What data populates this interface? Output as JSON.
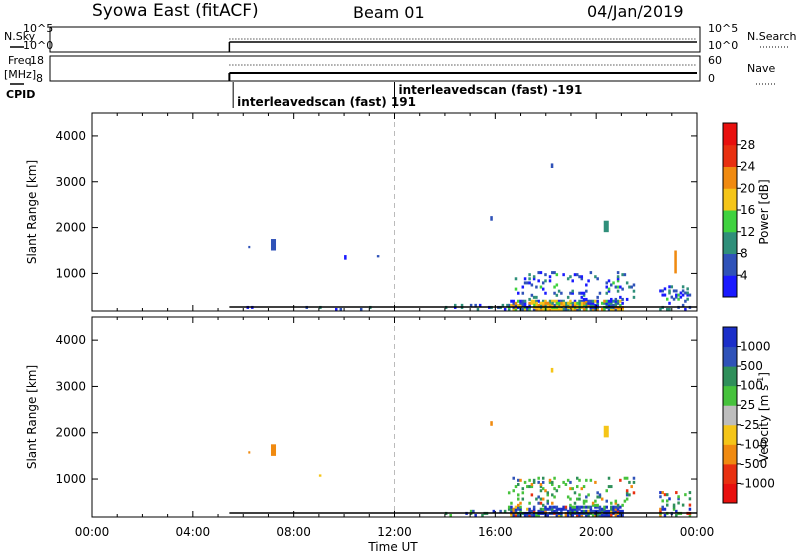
{
  "header": {
    "title": "Syowa East (fitACF)",
    "beam": "Beam 01",
    "date": "04/Jan/2019"
  },
  "status_panels": {
    "nsky": {
      "label": "N.Sky",
      "ticks": [
        "10^5",
        "10^0"
      ],
      "right_ticks": [
        "10^5",
        "10^0"
      ],
      "right_label": "N.Search",
      "right_legend_style": "dotted"
    },
    "freq": {
      "label_line1": "Freq.",
      "label_line2": "[MHz]",
      "ticks": [
        "18",
        "8"
      ],
      "right_ticks": [
        "60",
        "0"
      ],
      "right_label": "Nave",
      "right_legend_style": "dotted"
    },
    "cpid": {
      "label": "CPID",
      "entries": [
        {
          "time_h": 5.6,
          "text": "interleavedscan (fast) 191"
        },
        {
          "time_h": 12.0,
          "text": "interleavedscan (fast) -191"
        }
      ]
    },
    "data_start_h": 5.45,
    "data_end_h": 24.0
  },
  "chart_data": [
    {
      "type": "heatmap",
      "name": "power",
      "ylabel": "Slant Range [km]",
      "xlabel": "",
      "xlim": [
        0,
        24
      ],
      "ylim": [
        180,
        4500
      ],
      "yticks": [
        1000,
        2000,
        3000,
        4000
      ],
      "colorbar": {
        "label": "Power [dB]",
        "ticks": [
          "4",
          "8",
          "12",
          "16",
          "20",
          "24",
          "28"
        ],
        "colors": [
          "#1a1aff",
          "#2f52b8",
          "#2f8f7a",
          "#3fd23f",
          "#f5c518",
          "#f08a10",
          "#e83010",
          "#e8100e"
        ]
      },
      "clusters": [
        {
          "t0": 16.5,
          "t1": 21.0,
          "r0": 180,
          "r1": 400,
          "density": 0.75,
          "color_mix": [
            0.1,
            0.2,
            0.3,
            0.15,
            0.15,
            0.1
          ]
        },
        {
          "t0": 17.5,
          "t1": 19.5,
          "r0": 180,
          "r1": 350,
          "density": 0.8,
          "color_mix": [
            0,
            0.05,
            0.1,
            0.2,
            0.35,
            0.3
          ]
        },
        {
          "t0": 16.5,
          "t1": 21.5,
          "r0": 400,
          "r1": 1000,
          "density": 0.12,
          "color_mix": [
            0.4,
            0.3,
            0.2,
            0.1,
            0,
            0
          ]
        },
        {
          "t0": 22.5,
          "t1": 23.7,
          "r0": 180,
          "r1": 700,
          "density": 0.2,
          "color_mix": [
            0.3,
            0.3,
            0.3,
            0.1,
            0,
            0
          ]
        },
        {
          "t0": 5.5,
          "t1": 11.0,
          "r0": 180,
          "r1": 260,
          "density": 0.05,
          "color_mix": [
            0.4,
            0.3,
            0.3,
            0,
            0,
            0
          ]
        },
        {
          "t0": 14.0,
          "t1": 16.5,
          "r0": 180,
          "r1": 300,
          "density": 0.15,
          "color_mix": [
            0.4,
            0.3,
            0.3,
            0,
            0,
            0
          ]
        }
      ],
      "streaks": [
        {
          "t0": 7.1,
          "t1": 7.3,
          "r0": 1500,
          "r1": 1750,
          "color": "#2f52b8"
        },
        {
          "t0": 6.2,
          "t1": 6.25,
          "r0": 1550,
          "r1": 1600,
          "color": "#2f52b8"
        },
        {
          "t0": 23.1,
          "t1": 23.2,
          "r0": 1000,
          "r1": 1500,
          "color": "#f08a10"
        },
        {
          "t0": 10.0,
          "t1": 10.1,
          "r0": 1300,
          "r1": 1400,
          "color": "#1a1aff"
        },
        {
          "t0": 11.3,
          "t1": 11.4,
          "r0": 1350,
          "r1": 1400,
          "color": "#2f52b8"
        },
        {
          "t0": 15.8,
          "t1": 15.9,
          "r0": 2150,
          "r1": 2250,
          "color": "#2f52b8"
        },
        {
          "t0": 18.2,
          "t1": 18.3,
          "r0": 3300,
          "r1": 3400,
          "color": "#2f52b8"
        },
        {
          "t0": 20.3,
          "t1": 20.5,
          "r0": 1900,
          "r1": 2150,
          "color": "#2f8f7a"
        }
      ]
    },
    {
      "type": "heatmap",
      "name": "velocity",
      "ylabel": "Slant Range [km]",
      "xlabel": "Time UT",
      "xlim": [
        0,
        24
      ],
      "ylim": [
        180,
        4500
      ],
      "yticks": [
        1000,
        2000,
        3000,
        4000
      ],
      "xticks": [
        "00:00",
        "04:00",
        "08:00",
        "12:00",
        "16:00",
        "20:00",
        "00:00"
      ],
      "colorbar": {
        "label": "Velocity [m s",
        "label_superscript": "-1",
        "label_close": "]",
        "ticks": [
          "1000",
          "500",
          "100",
          "25",
          "-25",
          "-100",
          "-500",
          "-1000"
        ],
        "colors": [
          "#1b2fc9",
          "#2f52b8",
          "#2f8f5a",
          "#46c23c",
          "#bdbdbd",
          "#f5c518",
          "#f08a10",
          "#e83010",
          "#e8100e"
        ]
      },
      "clusters": [
        {
          "t0": 16.5,
          "t1": 21.0,
          "r0": 180,
          "r1": 400,
          "density": 0.75,
          "color_mix": [
            0.35,
            0.25,
            0.1,
            0.1,
            0.05,
            0.1,
            0.05
          ]
        },
        {
          "t0": 16.5,
          "t1": 21.5,
          "r0": 400,
          "r1": 1000,
          "density": 0.14,
          "color_mix": [
            0,
            0.1,
            0.3,
            0.4,
            0,
            0.15,
            0.05
          ]
        },
        {
          "t0": 22.5,
          "t1": 23.7,
          "r0": 180,
          "r1": 700,
          "density": 0.2,
          "color_mix": [
            0.2,
            0.2,
            0.2,
            0.2,
            0,
            0.1,
            0.1
          ]
        },
        {
          "t0": 14.0,
          "t1": 16.5,
          "r0": 180,
          "r1": 300,
          "density": 0.15,
          "color_mix": [
            0.2,
            0.2,
            0.3,
            0.2,
            0,
            0.1,
            0
          ]
        }
      ],
      "streaks": [
        {
          "t0": 7.1,
          "t1": 7.3,
          "r0": 1500,
          "r1": 1750,
          "color": "#f08a10"
        },
        {
          "t0": 6.2,
          "t1": 6.25,
          "r0": 1550,
          "r1": 1600,
          "color": "#f08a10"
        },
        {
          "t0": 9.0,
          "t1": 9.1,
          "r0": 1050,
          "r1": 1100,
          "color": "#f5c518"
        },
        {
          "t0": 15.8,
          "t1": 15.9,
          "r0": 2150,
          "r1": 2250,
          "color": "#f08a10"
        },
        {
          "t0": 18.2,
          "t1": 18.3,
          "r0": 3300,
          "r1": 3400,
          "color": "#f5c518"
        },
        {
          "t0": 20.3,
          "t1": 20.5,
          "r0": 1900,
          "r1": 2150,
          "color": "#f5c518"
        }
      ]
    }
  ]
}
